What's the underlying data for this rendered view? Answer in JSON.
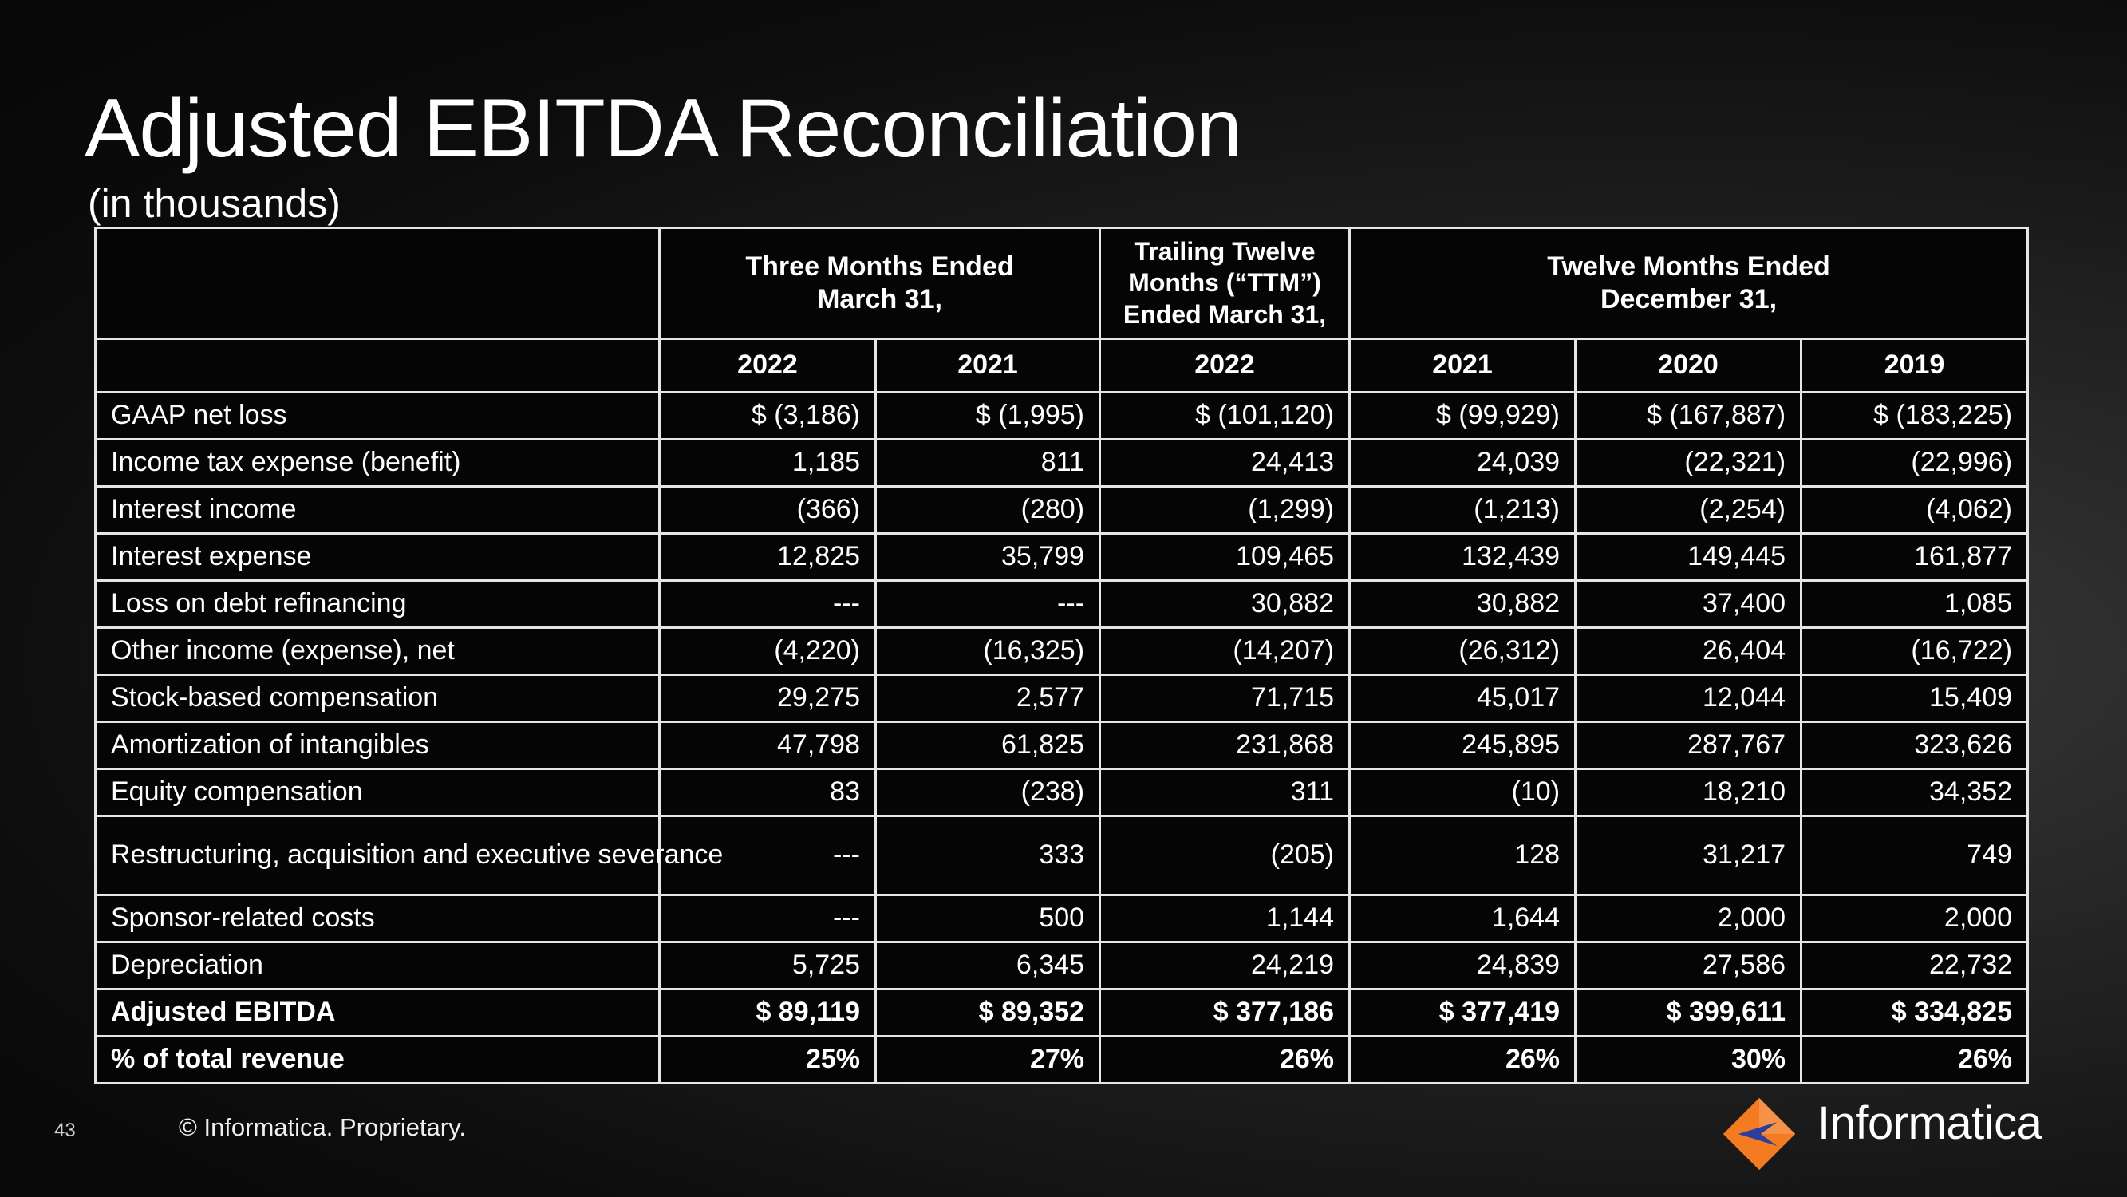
{
  "header": {
    "title": "Adjusted EBITDA Reconciliation",
    "subtitle": "(in thousands)"
  },
  "table": {
    "group_headers": {
      "three_months": [
        "Three Months Ended",
        "March 31,"
      ],
      "ttm": [
        "Trailing Twelve",
        "Months (“TTM”)",
        "Ended March 31,"
      ],
      "twelve_months": [
        "Twelve Months Ended",
        "December 31,"
      ]
    },
    "years": [
      "2022",
      "2021",
      "2022",
      "2021",
      "2020",
      "2019"
    ],
    "rows": [
      {
        "label": "GAAP net loss",
        "values": [
          "$ (3,186)",
          "$ (1,995)",
          "$ (101,120)",
          "$ (99,929)",
          "$ (167,887)",
          "$ (183,225)"
        ]
      },
      {
        "label": "Income tax expense (benefit)",
        "values": [
          "1,185",
          "811",
          "24,413",
          "24,039",
          "(22,321)",
          "(22,996)"
        ]
      },
      {
        "label": "Interest income",
        "values": [
          "(366)",
          "(280)",
          "(1,299)",
          "(1,213)",
          "(2,254)",
          "(4,062)"
        ]
      },
      {
        "label": "Interest expense",
        "values": [
          "12,825",
          "35,799",
          "109,465",
          "132,439",
          "149,445",
          "161,877"
        ]
      },
      {
        "label": "Loss on debt refinancing",
        "values": [
          "---",
          "---",
          "30,882",
          "30,882",
          "37,400",
          "1,085"
        ]
      },
      {
        "label": "Other income (expense), net",
        "values": [
          "(4,220)",
          "(16,325)",
          "(14,207)",
          "(26,312)",
          "26,404",
          "(16,722)"
        ]
      },
      {
        "label": "Stock-based compensation",
        "values": [
          "29,275",
          "2,577",
          "71,715",
          "45,017",
          "12,044",
          "15,409"
        ]
      },
      {
        "label": "Amortization of intangibles",
        "values": [
          "47,798",
          "61,825",
          "231,868",
          "245,895",
          "287,767",
          "323,626"
        ]
      },
      {
        "label": "Equity compensation",
        "values": [
          "83",
          "(238)",
          "311",
          "(10)",
          "18,210",
          "34,352"
        ]
      },
      {
        "label": "Restructuring, acquisition and executive severance",
        "values": [
          "---",
          "333",
          "(205)",
          "128",
          "31,217",
          "749"
        ]
      },
      {
        "label": "Sponsor-related costs",
        "values": [
          "---",
          "500",
          "1,144",
          "1,644",
          "2,000",
          "2,000"
        ]
      },
      {
        "label": "Depreciation",
        "values": [
          "5,725",
          "6,345",
          "24,219",
          "24,839",
          "27,586",
          "22,732"
        ]
      },
      {
        "label": "Adjusted EBITDA",
        "values": [
          "$ 89,119",
          "$ 89,352",
          "$ 377,186",
          "$ 377,419",
          "$ 399,611",
          "$ 334,825"
        ]
      },
      {
        "label": "% of total revenue",
        "values": [
          "25%",
          "27%",
          "26%",
          "26%",
          "30%",
          "26%"
        ]
      }
    ]
  },
  "footer": {
    "page_number": "43",
    "copyright": "© Informatica. Proprietary.",
    "brand": "Informatica",
    "brand_colors": {
      "orange": "#f47b20",
      "blue": "#2d3f9e"
    }
  }
}
